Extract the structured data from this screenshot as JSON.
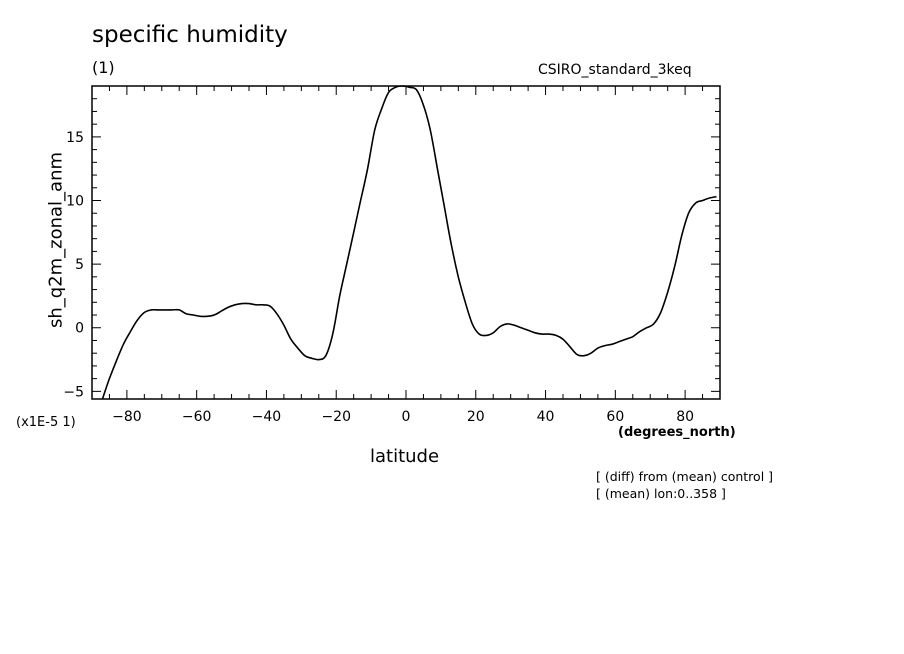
{
  "header": {
    "title": "specific humidity",
    "subtitle": "(1)",
    "model": "CSIRO_standard_3keq"
  },
  "axis_notes": {
    "scale": "(x1E-5 1)",
    "x_units": "(degrees_north)"
  },
  "notes": [
    "[ (diff) from (mean) control ]",
    "[ (mean) lon:0..358 ]"
  ],
  "chart_data": {
    "type": "line",
    "title": "specific humidity",
    "xlabel": "latitude",
    "ylabel": "sh_q2m_zonal_anm",
    "xlim": [
      -90,
      90
    ],
    "ylim": [
      -5.6,
      19
    ],
    "xticks": [
      -80,
      -60,
      -40,
      -20,
      0,
      20,
      40,
      60,
      80
    ],
    "yticks": [
      -5,
      0,
      5,
      10,
      15
    ],
    "grid": false,
    "series": [
      {
        "x": [
          -87,
          -85,
          -83,
          -81,
          -79,
          -77,
          -75,
          -73,
          -71,
          -69,
          -67,
          -65,
          -63,
          -61,
          -59,
          -57,
          -55,
          -53,
          -51,
          -49,
          -47,
          -45,
          -43,
          -41,
          -39,
          -37,
          -35,
          -33,
          -31,
          -29,
          -27,
          -25,
          -23,
          -21,
          -19,
          -17,
          -15,
          -13,
          -11,
          -9,
          -7,
          -5,
          -3,
          -1,
          1,
          3,
          5,
          7,
          9,
          11,
          13,
          15,
          17,
          19,
          21,
          23,
          25,
          27,
          29,
          31,
          33,
          35,
          37,
          39,
          41,
          43,
          45,
          47,
          49,
          51,
          53,
          55,
          57,
          59,
          61,
          63,
          65,
          67,
          69,
          71,
          73,
          75,
          77,
          79,
          81,
          83,
          85,
          87,
          89
        ],
        "values": [
          -5.6,
          -4.0,
          -2.6,
          -1.3,
          -0.3,
          0.6,
          1.2,
          1.4,
          1.4,
          1.4,
          1.4,
          1.4,
          1.1,
          1.0,
          0.9,
          0.9,
          1.0,
          1.3,
          1.6,
          1.8,
          1.9,
          1.9,
          1.8,
          1.8,
          1.7,
          1.1,
          0.2,
          -0.9,
          -1.6,
          -2.2,
          -2.4,
          -2.5,
          -2.2,
          -0.5,
          2.5,
          5.0,
          7.5,
          10.0,
          12.5,
          15.5,
          17.2,
          18.5,
          18.9,
          19.0,
          18.9,
          18.7,
          17.5,
          15.5,
          12.5,
          9.5,
          6.5,
          4.0,
          2.0,
          0.3,
          -0.5,
          -0.6,
          -0.4,
          0.1,
          0.3,
          0.2,
          0.0,
          -0.2,
          -0.4,
          -0.5,
          -0.5,
          -0.6,
          -0.9,
          -1.5,
          -2.1,
          -2.2,
          -2.0,
          -1.6,
          -1.4,
          -1.3,
          -1.1,
          -0.9,
          -0.7,
          -0.3,
          0.0,
          0.3,
          1.2,
          2.8,
          4.8,
          7.2,
          9.0,
          9.8,
          10.0,
          10.2,
          10.3
        ]
      }
    ]
  }
}
